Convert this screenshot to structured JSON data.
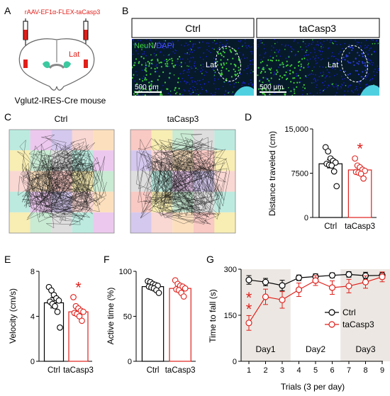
{
  "panel_letters": {
    "A": "A",
    "B": "B",
    "C": "C",
    "D": "D",
    "E": "E",
    "F": "F",
    "G": "G"
  },
  "panel_a": {
    "virus_label": "rAAV-EF1α-FLEX-taCasp3",
    "region_label": "Lat",
    "caption": "Vglut2-IRES-Cre mouse",
    "colors": {
      "virus": "#e0201b",
      "injection": "#e0201b",
      "nucleus": "#3cc9a0",
      "brain_outline": "#666666"
    }
  },
  "panel_b": {
    "headers": [
      "Ctrl",
      "taCasp3"
    ],
    "stain_label_green": "NeuN",
    "stain_label_sep": "/",
    "stain_label_blue": "DAPI",
    "region_label": "Lat",
    "scale_bar": "500 μm",
    "colors": {
      "neun": "#3fd23a",
      "dapi": "#1a1fd0",
      "background": "#061a2a",
      "ventricle": "#4fd0e0"
    }
  },
  "panel_c": {
    "titles": [
      "Ctrl",
      "taCasp3"
    ],
    "grid_colors": [
      "#a6e3d4",
      "#f7b7b0",
      "#e5b5e8",
      "#f5e79a",
      "#c7b5e8",
      "#b7e3c4",
      "#f7c9c4",
      "#d3d3d3",
      "#fbd5a8"
    ]
  },
  "chart_data": [
    {
      "panel": "D",
      "type": "bar",
      "categories": [
        "Ctrl",
        "taCasp3"
      ],
      "values": [
        9100,
        8050
      ],
      "errors": [
        700,
        430
      ],
      "points": [
        [
          11900,
          11200,
          10000,
          9600,
          9300,
          9100,
          8900,
          8800,
          7800,
          5300
        ],
        [
          10000,
          8800,
          8500,
          8100,
          7900,
          7700,
          7600,
          7400,
          6600
        ]
      ],
      "ylabel": "Distance  traveled (cm)",
      "ylim": [
        0,
        15000
      ],
      "yticks": [
        "0",
        "7500",
        "15,000"
      ],
      "significance": "*",
      "colors": [
        "#000000",
        "#e0201b"
      ]
    },
    {
      "panel": "E",
      "type": "bar",
      "categories": [
        "Ctrl",
        "taCasp3"
      ],
      "values": [
        5.2,
        4.4
      ],
      "errors": [
        0.45,
        0.25
      ],
      "points": [
        [
          6.6,
          6.3,
          5.9,
          5.6,
          5.4,
          5.3,
          5.1,
          4.9,
          4.4,
          3.0
        ],
        [
          5.7,
          4.9,
          4.7,
          4.5,
          4.4,
          4.3,
          4.2,
          4.0,
          3.6
        ]
      ],
      "ylabel": "Velocity (cm/s)",
      "ylim": [
        0,
        8
      ],
      "yticks": [
        "0",
        "4",
        "8"
      ],
      "significance": "*",
      "colors": [
        "#000000",
        "#e0201b"
      ]
    },
    {
      "panel": "F",
      "type": "bar",
      "categories": [
        "Ctrl",
        "taCasp3"
      ],
      "values": [
        83,
        81
      ],
      "errors": [
        2,
        2.5
      ],
      "points": [
        [
          89,
          88,
          86,
          85,
          84,
          83,
          82,
          81,
          79,
          76
        ],
        [
          90,
          86,
          84,
          83,
          81,
          80,
          79,
          76,
          72
        ]
      ],
      "ylabel": "Active time (%)",
      "ylim": [
        0,
        100
      ],
      "yticks": [
        "0",
        "50",
        "100"
      ],
      "colors": [
        "#000000",
        "#e0201b"
      ]
    },
    {
      "panel": "G",
      "type": "line",
      "x": [
        1,
        2,
        3,
        4,
        5,
        6,
        7,
        8,
        9
      ],
      "series": [
        {
          "name": "Ctrl",
          "values": [
            265,
            258,
            247,
            272,
            276,
            280,
            283,
            279,
            280
          ],
          "errors": [
            14,
            12,
            17,
            9,
            9,
            8,
            9,
            11,
            10
          ]
        },
        {
          "name": "taCasp3",
          "values": [
            125,
            210,
            200,
            233,
            263,
            240,
            245,
            258,
            275
          ],
          "errors": [
            24,
            25,
            27,
            22,
            16,
            22,
            22,
            20,
            16
          ]
        }
      ],
      "xlabel": "Trials (3 per day)",
      "ylabel": "Time to fall (s)",
      "ylim": [
        0,
        300
      ],
      "yticks": [
        "0",
        "150",
        "300"
      ],
      "xticks": [
        "1",
        "2",
        "3",
        "4",
        "5",
        "6",
        "7",
        "8",
        "9"
      ],
      "day_labels": [
        "Day1",
        "Day2",
        "Day3"
      ],
      "significance": [
        "*",
        "*"
      ],
      "legend_position": "right",
      "colors": [
        "#000000",
        "#e0201b"
      ],
      "shade_color": "#ece7e2"
    }
  ]
}
